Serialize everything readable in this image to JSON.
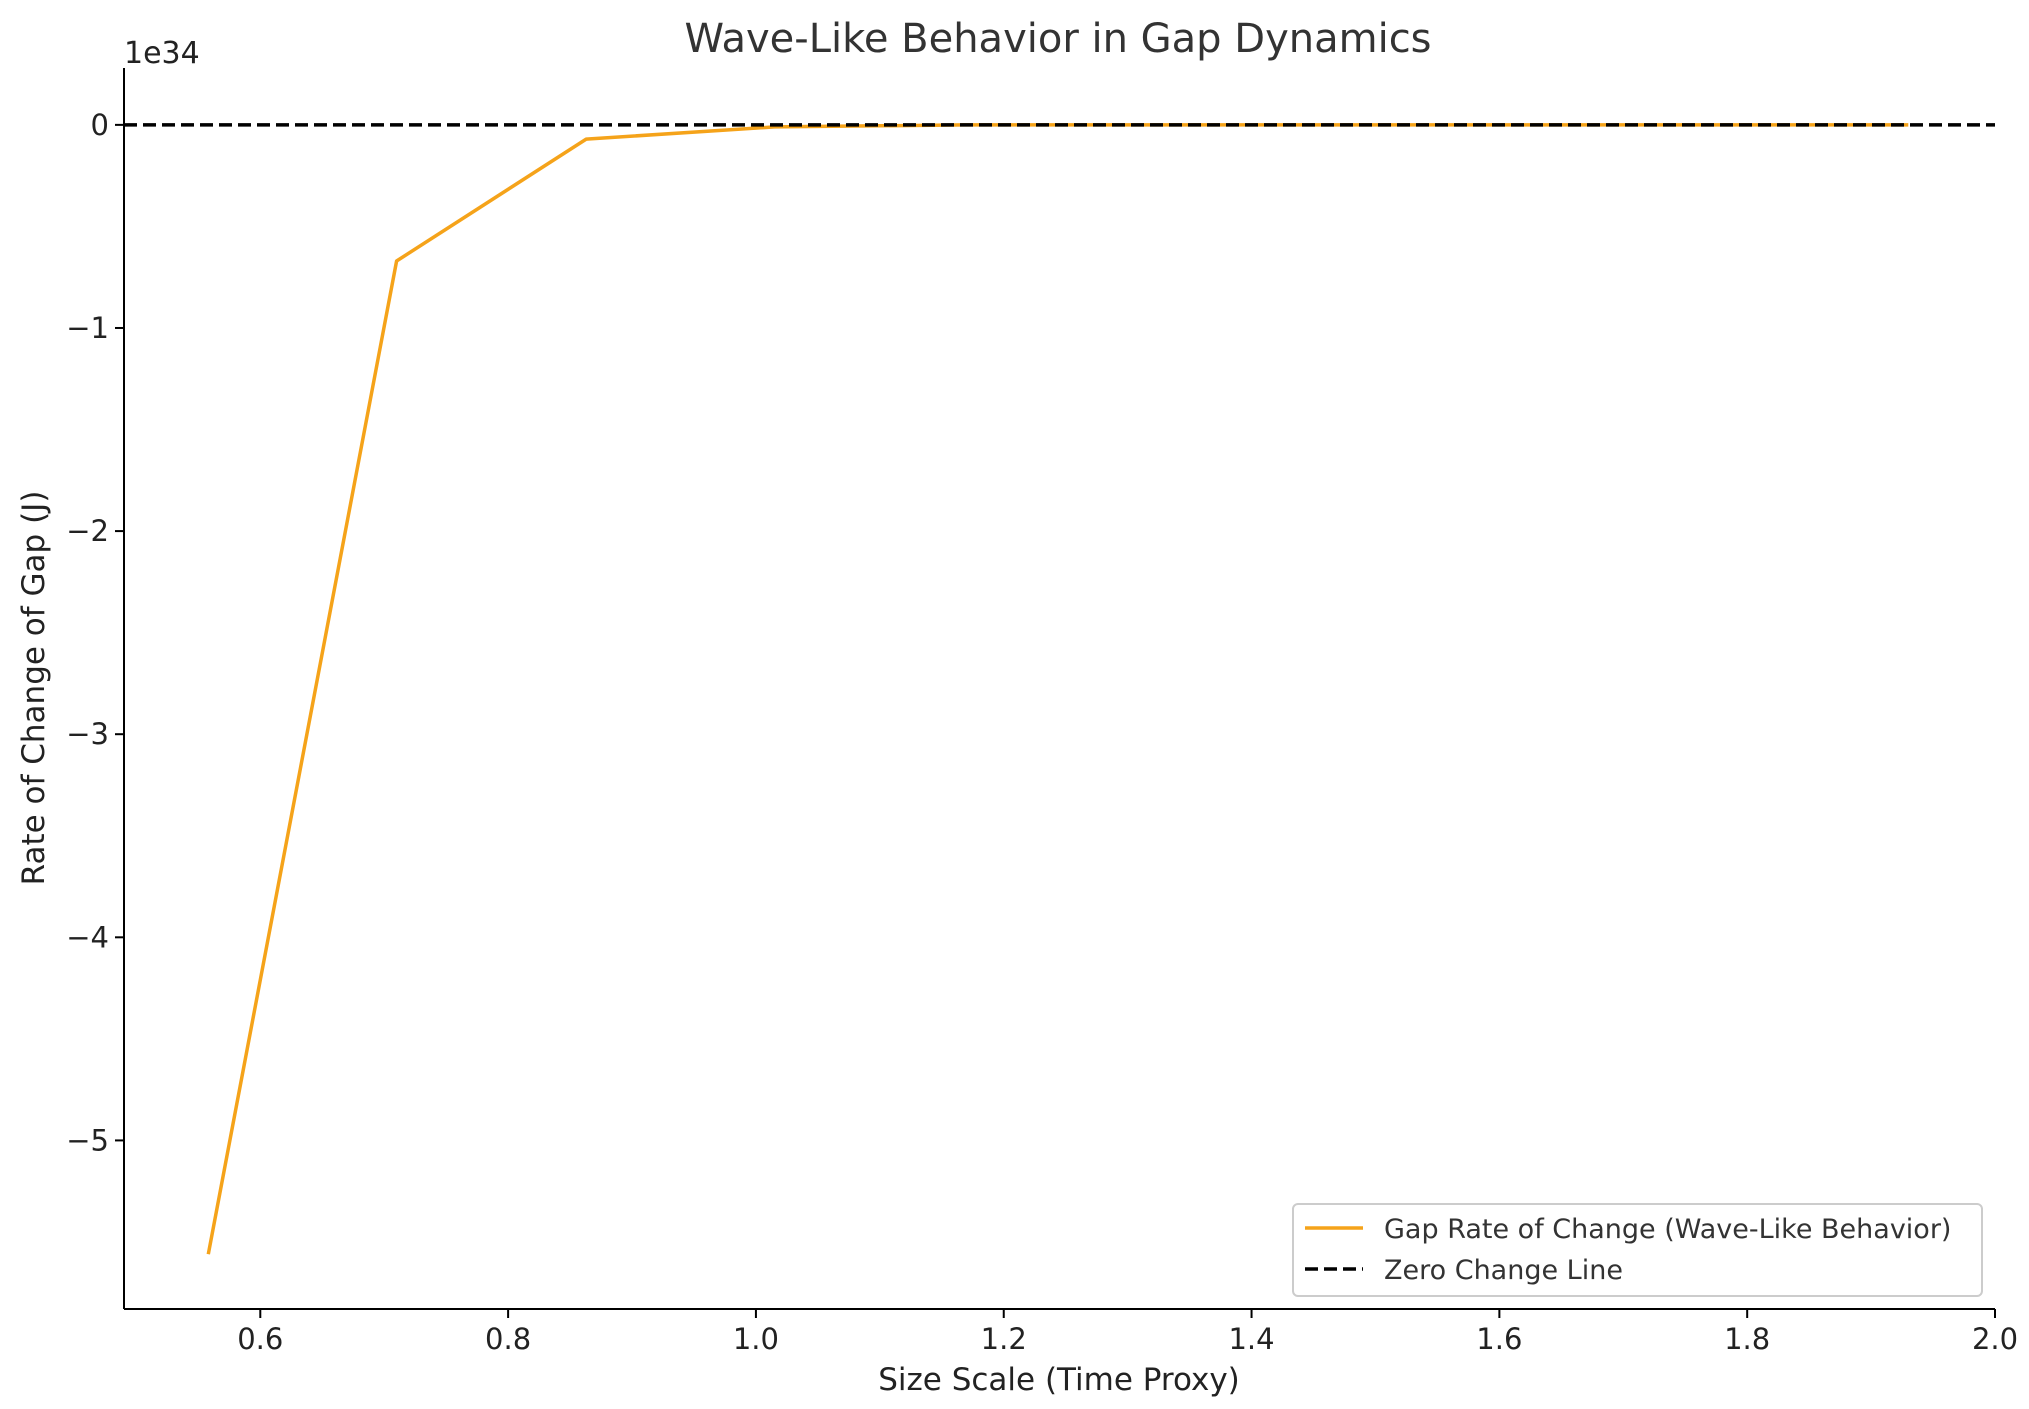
{
  "chart_data": {
    "type": "line",
    "title": "Wave-Like Behavior in Gap Dynamics",
    "xlabel": "Size Scale (Time Proxy)",
    "ylabel": "Rate of Change of Gap (J)",
    "y_offset_label": "1e34",
    "xlim": [
      0.49,
      2.0
    ],
    "ylim": [
      -5.83,
      0.28
    ],
    "x_ticks": [
      {
        "value": 0.6,
        "label": "0.6"
      },
      {
        "value": 0.8,
        "label": "0.8"
      },
      {
        "value": 1.0,
        "label": "1.0"
      },
      {
        "value": 1.2,
        "label": "1.2"
      },
      {
        "value": 1.4,
        "label": "1.4"
      },
      {
        "value": 1.6,
        "label": "1.6"
      },
      {
        "value": 1.8,
        "label": "1.8"
      },
      {
        "value": 2.0,
        "label": "2.0"
      }
    ],
    "y_ticks": [
      {
        "value": 0,
        "label": "0"
      },
      {
        "value": -1,
        "label": "−1"
      },
      {
        "value": -2,
        "label": "−2"
      },
      {
        "value": -3,
        "label": "−3"
      },
      {
        "value": -4,
        "label": "−4"
      },
      {
        "value": -5,
        "label": "−5"
      }
    ],
    "grid": false,
    "legend_position": "lower-right",
    "series": [
      {
        "name": "Gap Rate of Change (Wave-Like Behavior)",
        "color": "#f5a31a",
        "style": "solid",
        "x": [
          0.558,
          0.71,
          0.863,
          1.015,
          1.168,
          1.32,
          1.473,
          1.625,
          1.778,
          1.93
        ],
        "values": [
          -5.56,
          -0.67,
          -0.07,
          -0.01,
          0.0,
          0.0,
          0.0,
          0.0,
          0.0,
          0.0
        ]
      },
      {
        "name": "Zero Change Line",
        "color": "#000000",
        "style": "dashed",
        "x": [
          0.49,
          2.0
        ],
        "values": [
          0,
          0
        ]
      }
    ]
  }
}
